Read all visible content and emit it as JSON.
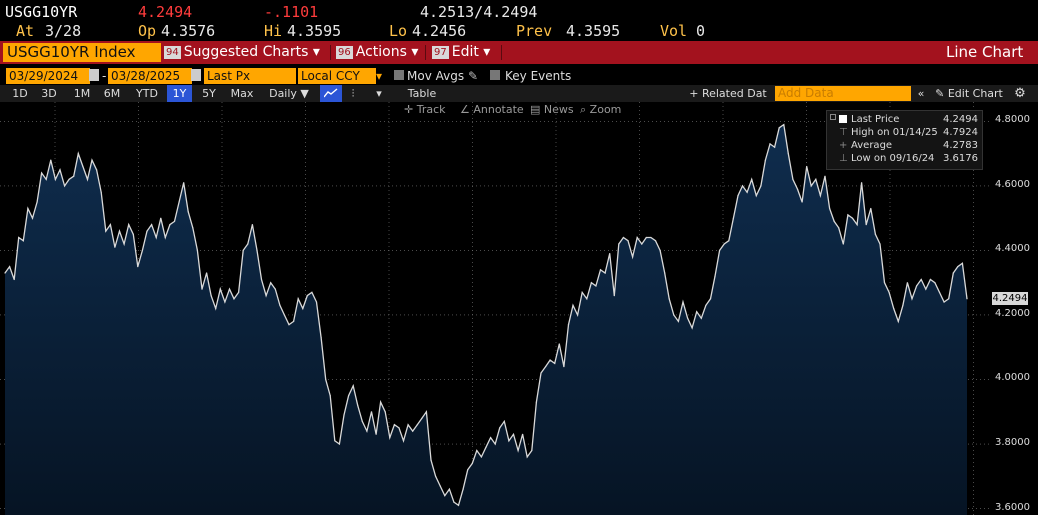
{
  "header": {
    "ticker": "USGG10YR",
    "last": "4.2494",
    "change": "-.1101",
    "bid_ask": "4.2513/4.2494",
    "at_label": "At",
    "at_date": "3/28",
    "open_label": "Op",
    "open": "4.3576",
    "high_label": "Hi",
    "high": "4.3595",
    "low_label": "Lo",
    "low": "4.2456",
    "prev_label": "Prev",
    "prev": "4.3595",
    "vol_label": "Vol",
    "vol": "0"
  },
  "menubar": {
    "security": "USGG10YR Index",
    "suggested": {
      "num": "94",
      "label": "Suggested Charts ▾"
    },
    "actions": {
      "num": "96",
      "label": "Actions ▾"
    },
    "edit": {
      "num": "97",
      "label": "Edit ▾"
    },
    "chart_type": "Line Chart"
  },
  "controls": {
    "start_date": "03/29/2024",
    "end_date": "03/28/2025",
    "dash": "-",
    "field": "Last Px",
    "currency": "Local CCY",
    "mov_avgs": "Mov Avgs",
    "key_events": "Key Events"
  },
  "periods": {
    "items": [
      "1D",
      "3D",
      "1M",
      "6M",
      "YTD",
      "1Y",
      "5Y",
      "Max"
    ],
    "active": "1Y",
    "frequency": "Daily ▼",
    "table": "Table",
    "related": "+ Related Dat",
    "add_data_placeholder": "Add Data",
    "collapse": "«",
    "edit_chart": "✎ Edit Chart",
    "gear": "gear-icon"
  },
  "tools": {
    "track": "Track",
    "annotate": "Annotate",
    "news": "News",
    "zoom": "Zoom"
  },
  "legend": {
    "last_label": "Last Price",
    "last_value": "4.2494",
    "high_label": "High on 01/14/25",
    "high_value": "4.7924",
    "avg_label": "Average",
    "avg_value": "4.2783",
    "low_label": "Low on 09/16/24",
    "low_value": "3.6176"
  },
  "colors": {
    "line": "#d9d9d9",
    "fill_top": "#0f2d4e",
    "fill_bottom": "#061424",
    "grid": "#7a7a7a",
    "bar": "#a3121e",
    "amber": "#ffa600"
  },
  "chart_data": {
    "type": "area",
    "series": [
      {
        "name": "Last Price",
        "values": [
          4.33,
          4.35,
          4.31,
          4.44,
          4.43,
          4.53,
          4.5,
          4.55,
          4.64,
          4.62,
          4.68,
          4.62,
          4.65,
          4.6,
          4.62,
          4.63,
          4.7,
          4.66,
          4.62,
          4.68,
          4.65,
          4.58,
          4.46,
          4.48,
          4.41,
          4.46,
          4.42,
          4.48,
          4.45,
          4.35,
          4.4,
          4.46,
          4.48,
          4.44,
          4.5,
          4.44,
          4.48,
          4.49,
          4.55,
          4.61,
          4.52,
          4.47,
          4.4,
          4.28,
          4.33,
          4.26,
          4.22,
          4.28,
          4.24,
          4.28,
          4.25,
          4.27,
          4.4,
          4.42,
          4.48,
          4.4,
          4.31,
          4.26,
          4.3,
          4.28,
          4.23,
          4.2,
          4.17,
          4.18,
          4.25,
          4.22,
          4.26,
          4.27,
          4.24,
          4.13,
          4.0,
          3.95,
          3.81,
          3.8,
          3.89,
          3.95,
          3.98,
          3.92,
          3.87,
          3.84,
          3.9,
          3.83,
          3.93,
          3.9,
          3.82,
          3.86,
          3.85,
          3.81,
          3.86,
          3.84,
          3.86,
          3.88,
          3.9,
          3.75,
          3.7,
          3.67,
          3.64,
          3.66,
          3.62,
          3.61,
          3.66,
          3.72,
          3.74,
          3.78,
          3.76,
          3.79,
          3.82,
          3.8,
          3.85,
          3.87,
          3.81,
          3.83,
          3.78,
          3.83,
          3.76,
          3.78,
          3.93,
          4.02,
          4.04,
          4.06,
          4.05,
          4.11,
          4.04,
          4.17,
          4.23,
          4.2,
          4.27,
          4.25,
          4.3,
          4.29,
          4.34,
          4.33,
          4.39,
          4.26,
          4.42,
          4.44,
          4.43,
          4.38,
          4.44,
          4.42,
          4.44,
          4.44,
          4.43,
          4.4,
          4.33,
          4.25,
          4.2,
          4.18,
          4.24,
          4.19,
          4.16,
          4.21,
          4.19,
          4.23,
          4.25,
          4.32,
          4.4,
          4.42,
          4.43,
          4.5,
          4.57,
          4.6,
          4.58,
          4.62,
          4.57,
          4.6,
          4.68,
          4.73,
          4.72,
          4.78,
          4.79,
          4.7,
          4.62,
          4.59,
          4.55,
          4.66,
          4.6,
          4.62,
          4.57,
          4.63,
          4.53,
          4.49,
          4.47,
          4.42,
          4.51,
          4.5,
          4.48,
          4.61,
          4.48,
          4.53,
          4.45,
          4.42,
          4.3,
          4.27,
          4.22,
          4.18,
          4.23,
          4.3,
          4.25,
          4.29,
          4.31,
          4.28,
          4.31,
          4.3,
          4.27,
          4.24,
          4.25,
          4.33,
          4.35,
          4.36,
          4.25
        ]
      }
    ],
    "ylim": [
      3.58,
      4.86
    ],
    "ytick_labels": [
      "4.8000",
      "4.6000",
      "4.4000",
      "4.2000",
      "4.0000",
      "3.8000",
      "3.6000"
    ],
    "grid": "dotted",
    "legend_position": "top-right"
  }
}
